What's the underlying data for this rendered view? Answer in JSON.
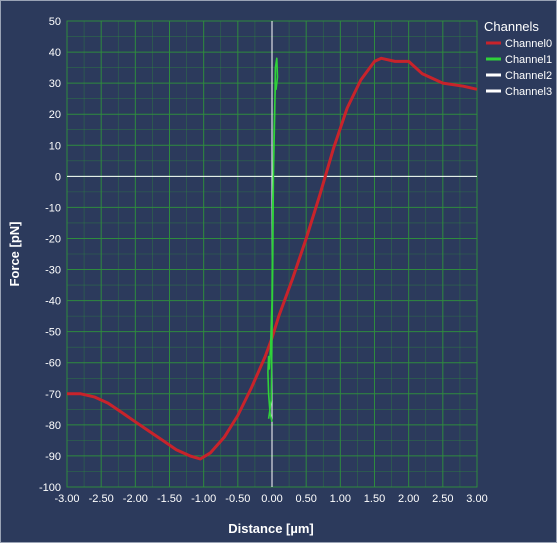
{
  "chart_data": {
    "type": "line",
    "xlabel": "Distance [µm]",
    "ylabel": "Force [pN]",
    "xlim": [
      -3,
      3
    ],
    "ylim": [
      -100,
      50
    ],
    "xticks": [
      "-3.00",
      "-2.50",
      "-2.00",
      "-1.50",
      "-1.00",
      "-0.50",
      "0.00",
      "0.50",
      "1.00",
      "1.50",
      "2.00",
      "2.50",
      "3.00"
    ],
    "yticks": [
      "50",
      "40",
      "30",
      "20",
      "10",
      "0",
      "-10",
      "-20",
      "-30",
      "-40",
      "-50",
      "-60",
      "-70",
      "-80",
      "-90",
      "-100"
    ],
    "grid": true,
    "legend_title": "Channels",
    "legend_position": "top-right",
    "series": [
      {
        "name": "Channel0",
        "color": "#c8232b",
        "x": [
          -3.0,
          -2.8,
          -2.6,
          -2.4,
          -2.2,
          -2.0,
          -1.8,
          -1.6,
          -1.4,
          -1.2,
          -1.05,
          -0.9,
          -0.7,
          -0.5,
          -0.3,
          -0.1,
          0.0,
          0.1,
          0.3,
          0.5,
          0.7,
          0.9,
          1.1,
          1.3,
          1.5,
          1.6,
          1.8,
          2.0,
          2.2,
          2.5,
          2.8,
          3.0
        ],
        "y": [
          -70,
          -70,
          -71,
          -73,
          -76,
          -79,
          -82,
          -85,
          -88,
          -90,
          -91,
          -89,
          -84,
          -77,
          -68,
          -58,
          -52,
          -45,
          -33,
          -20,
          -6,
          9,
          22,
          31,
          37,
          38,
          37,
          37,
          33,
          30,
          29,
          28
        ]
      },
      {
        "name": "Channel1",
        "color": "#2fd13a",
        "x": [
          -0.05,
          -0.03,
          -0.01,
          0.0,
          0.01,
          0.02,
          0.04,
          0.05,
          0.07,
          0.08,
          0.06,
          0.05,
          0.03,
          0.01,
          0.0,
          -0.02,
          -0.04,
          -0.05,
          -0.06,
          -0.05,
          -0.03,
          0.0
        ],
        "y": [
          -78,
          -75,
          -72,
          -50,
          -30,
          0,
          20,
          35,
          38,
          32,
          28,
          30,
          15,
          -10,
          -40,
          -55,
          -62,
          -58,
          -63,
          -70,
          -76,
          -79
        ]
      },
      {
        "name": "Channel2",
        "color": "#ffffff",
        "x": [],
        "y": []
      },
      {
        "name": "Channel3",
        "color": "#ffffff",
        "x": [],
        "y": []
      }
    ]
  }
}
